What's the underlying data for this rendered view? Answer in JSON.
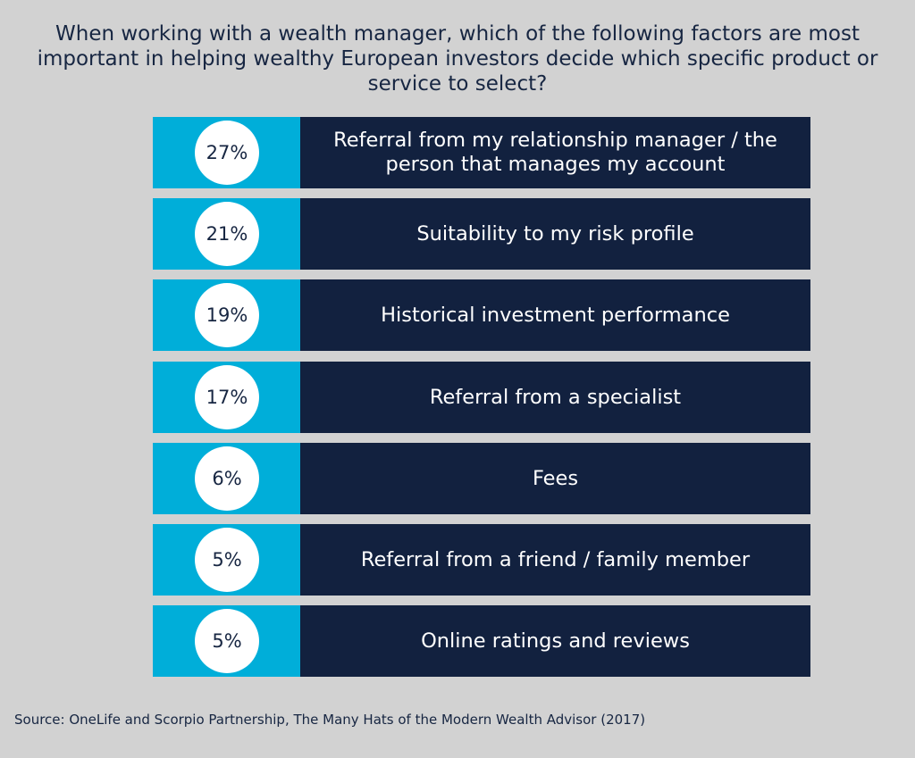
{
  "title": "When working with a wealth manager, which of the following factors are most important in helping wealthy European investors decide which specific product or service to select?",
  "source": "Source: OneLife and Scorpio Partnership, The Many Hats of the Modern Wealth Advisor (2017)",
  "colors": {
    "background": "#d2d2d2",
    "accent": "#00aed9",
    "label_box": "#12213f",
    "circle": "#ffffff",
    "text_dark": "#172642"
  },
  "chart_data": {
    "type": "table",
    "title": "When working with a wealth manager, which of the following factors are most important in helping wealthy European investors decide which specific product or service to select?",
    "categories": [
      "Referral from my relationship manager / the person that manages my account",
      "Suitability to my risk profile",
      "Historical investment performance",
      "Referral from a specialist",
      "Fees",
      "Referral from a friend / family member",
      "Online ratings and reviews"
    ],
    "values": [
      27,
      21,
      19,
      17,
      6,
      5,
      5
    ],
    "value_labels": [
      "27%",
      "21%",
      "19%",
      "17%",
      "6%",
      "5%",
      "5%"
    ]
  }
}
